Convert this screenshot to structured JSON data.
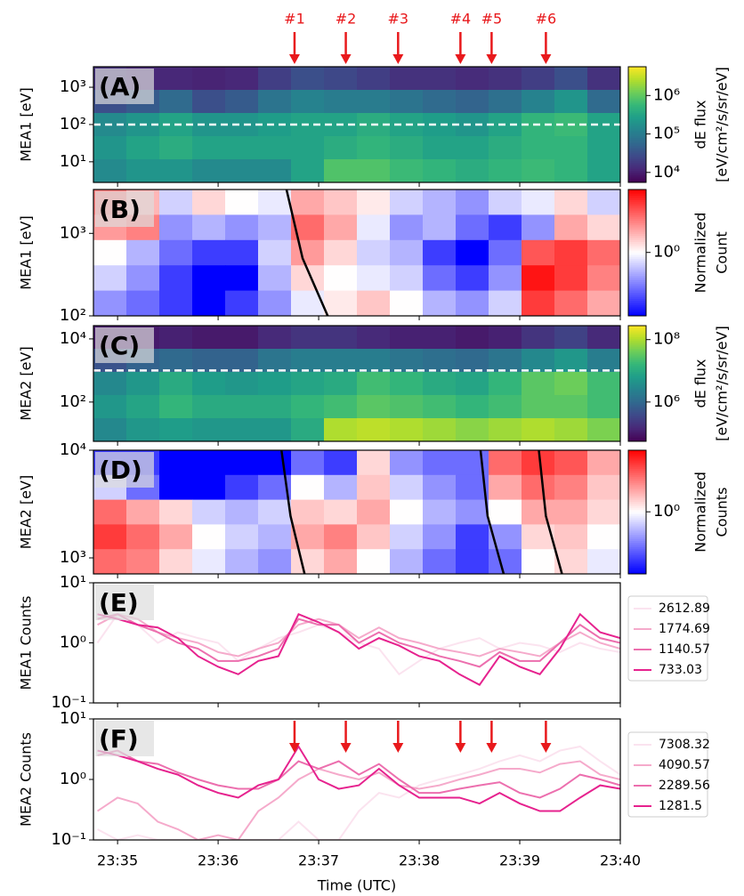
{
  "chart_data": [
    {
      "type": "heatmap",
      "panel_label": "(A)",
      "ylabel": "MEA1 [eV]",
      "log_y": true,
      "xlim": [
        34.76,
        40
      ],
      "ylim": [
        2.8,
        3550
      ],
      "yticks": [
        {
          "value": 10,
          "label": "10¹"
        },
        {
          "value": 100,
          "label": "10²"
        },
        {
          "value": 1000,
          "label": "10³"
        }
      ],
      "colormap": "viridis",
      "clim": [
        5500,
        5600000
      ],
      "colorbar_ticks": [
        {
          "value": 10000,
          "label": "10⁴"
        },
        {
          "value": 100000,
          "label": "10⁵"
        },
        {
          "value": 1000000,
          "label": "10⁶"
        }
      ],
      "colorbar_label": [
        "dE flux",
        "[eV/cm²/s/sr/eV]"
      ],
      "dashed_line": 100,
      "markers": [
        {
          "label": "#1",
          "x": 36.76
        },
        {
          "label": "#2",
          "x": 37.27
        },
        {
          "label": "#3",
          "x": 37.79
        },
        {
          "label": "#4",
          "x": 38.41
        },
        {
          "label": "#5",
          "x": 38.72
        },
        {
          "label": "#6",
          "x": 39.26
        }
      ],
      "z": [
        [
          15000.0,
          12000.0,
          12000.0,
          11000.0,
          12000.0,
          20000.0,
          30000.0,
          25000.0,
          20000.0,
          15000.0,
          15000.0,
          13000.0,
          15000.0,
          20000.0,
          30000.0,
          15000.0
        ],
        [
          30000.0,
          40000.0,
          60000.0,
          30000.0,
          40000.0,
          80000.0,
          120000.0,
          100000.0,
          100000.0,
          80000.0,
          60000.0,
          50000.0,
          70000.0,
          120000.0,
          200000.0,
          60000.0
        ],
        [
          150000.0,
          200000.0,
          300000.0,
          200000.0,
          200000.0,
          250000.0,
          300000.0,
          300000.0,
          400000.0,
          300000.0,
          250000.0,
          200000.0,
          300000.0,
          500000.0,
          600000.0,
          300000.0
        ],
        [
          200000.0,
          300000.0,
          400000.0,
          300000.0,
          300000.0,
          300000.0,
          300000.0,
          400000.0,
          500000.0,
          400000.0,
          300000.0,
          300000.0,
          400000.0,
          500000.0,
          500000.0,
          300000.0
        ],
        [
          150000.0,
          200000.0,
          200000.0,
          150000.0,
          150000.0,
          150000.0,
          300000.0,
          800000.0,
          800000.0,
          600000.0,
          500000.0,
          400000.0,
          500000.0,
          600000.0,
          500000.0,
          300000.0
        ]
      ]
    },
    {
      "type": "heatmap",
      "panel_label": "(B)",
      "ylabel": "MEA1 [eV]",
      "log_y": true,
      "xlim": [
        34.76,
        40
      ],
      "ylim": [
        100,
        3400
      ],
      "yticks": [
        {
          "value": 100,
          "label": "10²"
        },
        {
          "value": 1000,
          "label": "10³"
        }
      ],
      "colormap": "bwr",
      "clim": [
        0.3,
        3.3
      ],
      "colorbar_ticks": [
        {
          "value": 1,
          "label": "10⁰"
        }
      ],
      "colorbar_label": [
        "Normalized",
        "Count"
      ],
      "curves": [
        {
          "x": [
            36.68,
            36.84,
            37.09
          ],
          "y": [
            3400,
            500,
            100
          ]
        }
      ],
      "z": [
        [
          1.8,
          1.4,
          0.8,
          1.2,
          1.0,
          0.9,
          1.5,
          1.3,
          1.1,
          0.8,
          0.7,
          0.6,
          0.8,
          0.9,
          1.2,
          0.8
        ],
        [
          1.6,
          1.8,
          0.6,
          0.7,
          0.6,
          0.7,
          2.0,
          1.5,
          0.9,
          0.6,
          0.7,
          0.5,
          0.4,
          0.6,
          1.5,
          1.2
        ],
        [
          1.0,
          0.7,
          0.5,
          0.4,
          0.4,
          0.8,
          1.6,
          1.2,
          0.8,
          0.7,
          0.4,
          0.3,
          0.5,
          2.2,
          2.5,
          2.0
        ],
        [
          0.8,
          0.6,
          0.4,
          0.3,
          0.3,
          0.7,
          1.2,
          1.0,
          0.9,
          0.8,
          0.5,
          0.4,
          0.6,
          3.0,
          2.5,
          1.8
        ],
        [
          0.6,
          0.5,
          0.4,
          0.3,
          0.4,
          0.6,
          0.9,
          1.1,
          1.3,
          1.0,
          0.7,
          0.6,
          0.8,
          2.5,
          2.0,
          1.5
        ]
      ]
    },
    {
      "type": "heatmap",
      "panel_label": "(C)",
      "ylabel": "MEA2 [eV]",
      "log_y": true,
      "xlim": [
        34.76,
        40
      ],
      "ylim": [
        5.7,
        26300
      ],
      "yticks": [
        {
          "value": 100,
          "label": "10²"
        },
        {
          "value": 10000,
          "label": "10⁴"
        }
      ],
      "colormap": "viridis",
      "clim": [
        55000,
        280000000
      ],
      "colorbar_ticks": [
        {
          "value": 1000000,
          "label": "10⁶"
        },
        {
          "value": 100000000,
          "label": "10⁸"
        }
      ],
      "colorbar_label": [
        "dE flux",
        "[eV/cm²/s/sr/eV]"
      ],
      "dashed_line": 1000,
      "z": [
        [
          100000.0,
          100000.0,
          120000.0,
          100000.0,
          100000.0,
          150000.0,
          200000.0,
          200000.0,
          150000.0,
          120000.0,
          120000.0,
          100000.0,
          120000.0,
          200000.0,
          300000.0,
          150000.0
        ],
        [
          500000.0,
          800000.0,
          1000000.0,
          800000.0,
          800000.0,
          1500000.0,
          2000000.0,
          2000000.0,
          2000000.0,
          1500000.0,
          1200000.0,
          1000000.0,
          1500000.0,
          3000000.0,
          5000000.0,
          2000000.0
        ],
        [
          3000000.0,
          5000000.0,
          10000000.0,
          6000000.0,
          5000000.0,
          6000000.0,
          8000000.0,
          10000000.0,
          20000000.0,
          15000000.0,
          10000000.0,
          8000000.0,
          15000000.0,
          30000000.0,
          40000000.0,
          20000000.0
        ],
        [
          5000000.0,
          8000000.0,
          15000000.0,
          10000000.0,
          10000000.0,
          10000000.0,
          15000000.0,
          20000000.0,
          30000000.0,
          25000000.0,
          20000000.0,
          15000000.0,
          20000000.0,
          30000000.0,
          30000000.0,
          20000000.0
        ],
        [
          3000000.0,
          5000000.0,
          6000000.0,
          5000000.0,
          5000000.0,
          5000000.0,
          10000000.0,
          100000000.0,
          120000000.0,
          100000000.0,
          80000000.0,
          60000000.0,
          80000000.0,
          100000000.0,
          80000000.0,
          50000000.0
        ]
      ]
    },
    {
      "type": "heatmap",
      "panel_label": "(D)",
      "ylabel": "MEA2 [eV]",
      "log_y": true,
      "xlim": [
        34.76,
        40
      ],
      "ylim": [
        710,
        10000
      ],
      "yticks": [
        {
          "value": 1000,
          "label": "10³"
        },
        {
          "value": 10000,
          "label": "10⁴"
        }
      ],
      "colormap": "bwr",
      "clim": [
        0.3,
        3.3
      ],
      "colorbar_ticks": [
        {
          "value": 1,
          "label": "10⁰"
        }
      ],
      "colorbar_label": [
        "Normalized",
        "Counts"
      ],
      "curves": [
        {
          "x": [
            36.63,
            36.72,
            36.86
          ],
          "y": [
            10000,
            2450,
            710
          ]
        },
        {
          "x": [
            38.61,
            38.68,
            38.84
          ],
          "y": [
            10000,
            2450,
            710
          ]
        },
        {
          "x": [
            39.19,
            39.26,
            39.42
          ],
          "y": [
            10000,
            2450,
            710
          ]
        }
      ],
      "z": [
        [
          0.4,
          0.4,
          0.3,
          0.3,
          0.3,
          0.3,
          0.5,
          0.4,
          1.2,
          0.6,
          0.5,
          0.5,
          2.0,
          2.5,
          2.2,
          1.5
        ],
        [
          0.8,
          0.5,
          0.3,
          0.3,
          0.4,
          0.5,
          1.0,
          0.7,
          1.3,
          0.8,
          0.6,
          0.5,
          1.5,
          2.0,
          1.8,
          1.3
        ],
        [
          2.0,
          1.5,
          1.2,
          0.8,
          0.7,
          0.8,
          1.3,
          1.2,
          1.5,
          1.0,
          0.7,
          0.6,
          1.0,
          1.5,
          1.5,
          1.2
        ],
        [
          2.5,
          2.0,
          1.5,
          1.0,
          0.8,
          0.7,
          1.5,
          1.8,
          1.3,
          0.8,
          0.6,
          0.4,
          0.6,
          1.2,
          1.3,
          1.0
        ],
        [
          2.0,
          1.8,
          1.2,
          0.9,
          0.7,
          0.6,
          1.2,
          1.5,
          1.0,
          0.7,
          0.5,
          0.4,
          0.5,
          1.0,
          1.2,
          0.9
        ]
      ]
    },
    {
      "type": "line",
      "panel_label": "(E)",
      "ylabel": "MEA1 Counts",
      "log_y": true,
      "xlim": [
        34.76,
        40
      ],
      "ylim": [
        0.1,
        10
      ],
      "yticks": [
        {
          "value": 0.1,
          "label": "10⁻¹"
        },
        {
          "value": 1,
          "label": "10⁰"
        },
        {
          "value": 10,
          "label": "10¹"
        }
      ],
      "x": [
        34.8,
        35,
        35.2,
        35.4,
        35.6,
        35.8,
        36,
        36.2,
        36.4,
        36.6,
        36.8,
        37,
        37.2,
        37.4,
        37.6,
        37.8,
        38,
        38.2,
        38.4,
        38.6,
        38.8,
        39,
        39.2,
        39.4,
        39.6,
        39.8,
        40
      ],
      "series": [
        {
          "name": "2612.89",
          "color": "#fbe3ef",
          "values": [
            1,
            3,
            2,
            1,
            1.5,
            1.2,
            1,
            0.5,
            0.8,
            1.2,
            1.5,
            2,
            1.5,
            1,
            0.8,
            0.3,
            0.5,
            0.8,
            1,
            1.2,
            0.8,
            1,
            0.9,
            0.7,
            1,
            0.8,
            0.7
          ]
        },
        {
          "name": "1774.69",
          "color": "#f5aacb",
          "values": [
            2,
            3,
            2.5,
            1.5,
            1.2,
            1,
            0.7,
            0.6,
            0.8,
            1,
            2,
            2.5,
            2,
            1.2,
            1.8,
            1.2,
            1,
            0.8,
            0.7,
            0.6,
            0.8,
            0.7,
            0.6,
            1,
            1.5,
            1,
            0.8
          ]
        },
        {
          "name": "1140.57",
          "color": "#ec6fae",
          "values": [
            2.5,
            3,
            2,
            1.5,
            1,
            0.8,
            0.5,
            0.5,
            0.6,
            0.8,
            2.5,
            2,
            2,
            1,
            1.5,
            1,
            0.8,
            0.6,
            0.5,
            0.4,
            0.7,
            0.5,
            0.5,
            1,
            2,
            1.2,
            1
          ]
        },
        {
          "name": "733.03",
          "color": "#e6228e",
          "values": [
            3,
            2.5,
            2,
            1.8,
            1.2,
            0.6,
            0.4,
            0.3,
            0.5,
            0.6,
            3,
            2.2,
            1.5,
            0.8,
            1.2,
            0.9,
            0.6,
            0.5,
            0.3,
            0.2,
            0.6,
            0.4,
            0.3,
            0.8,
            3,
            1.5,
            1.2
          ]
        }
      ]
    },
    {
      "type": "line",
      "panel_label": "(F)",
      "ylabel": "MEA2 Counts",
      "log_y": true,
      "xlabel": "Time (UTC)",
      "xlim": [
        34.76,
        40
      ],
      "ylim": [
        0.1,
        10
      ],
      "xticks": [
        {
          "value": 35,
          "label": "23:35"
        },
        {
          "value": 36,
          "label": "23:36"
        },
        {
          "value": 37,
          "label": "23:37"
        },
        {
          "value": 38,
          "label": "23:38"
        },
        {
          "value": 39,
          "label": "23:39"
        },
        {
          "value": 40,
          "label": "23:40"
        }
      ],
      "yticks": [
        {
          "value": 0.1,
          "label": "10⁻¹"
        },
        {
          "value": 1,
          "label": "10⁰"
        },
        {
          "value": 10,
          "label": "10¹"
        }
      ],
      "markers_x": [
        36.76,
        37.27,
        37.79,
        38.41,
        38.72,
        39.26
      ],
      "x": [
        34.8,
        35,
        35.2,
        35.4,
        35.6,
        35.8,
        36,
        36.2,
        36.4,
        36.6,
        36.8,
        37,
        37.2,
        37.4,
        37.6,
        37.8,
        38,
        38.2,
        38.4,
        38.6,
        38.8,
        39,
        39.2,
        39.4,
        39.6,
        39.8,
        40
      ],
      "series": [
        {
          "name": "7308.32",
          "color": "#fbe3ef",
          "values": [
            0.15,
            0.1,
            0.12,
            0.1,
            0.1,
            0.1,
            0.1,
            0.1,
            0.1,
            0.1,
            0.2,
            0.1,
            0.1,
            0.3,
            0.6,
            0.5,
            0.8,
            1,
            1.2,
            1.5,
            2,
            2.5,
            2,
            3,
            3.5,
            2,
            1.2
          ]
        },
        {
          "name": "4090.57",
          "color": "#f5aacb",
          "values": [
            0.3,
            0.5,
            0.4,
            0.2,
            0.15,
            0.1,
            0.12,
            0.1,
            0.3,
            0.5,
            1,
            1.5,
            1.2,
            1,
            1.3,
            0.8,
            0.7,
            0.8,
            1,
            1.2,
            1.5,
            1.5,
            1.3,
            1.8,
            2,
            1.2,
            1
          ]
        },
        {
          "name": "2289.56",
          "color": "#ec6fae",
          "values": [
            2.5,
            3,
            2,
            1.8,
            1.3,
            1,
            0.8,
            0.7,
            0.7,
            1,
            2,
            1.5,
            2,
            1.2,
            1.8,
            1,
            0.6,
            0.6,
            0.7,
            0.8,
            0.9,
            0.6,
            0.5,
            0.7,
            1.2,
            1,
            0.8
          ]
        },
        {
          "name": "1281.5",
          "color": "#e6228e",
          "values": [
            3,
            2.5,
            2,
            1.5,
            1.2,
            0.8,
            0.6,
            0.5,
            0.8,
            1,
            3.5,
            1,
            0.7,
            0.8,
            1.5,
            0.8,
            0.5,
            0.5,
            0.5,
            0.4,
            0.6,
            0.4,
            0.3,
            0.3,
            0.5,
            0.8,
            0.7
          ]
        }
      ]
    }
  ]
}
